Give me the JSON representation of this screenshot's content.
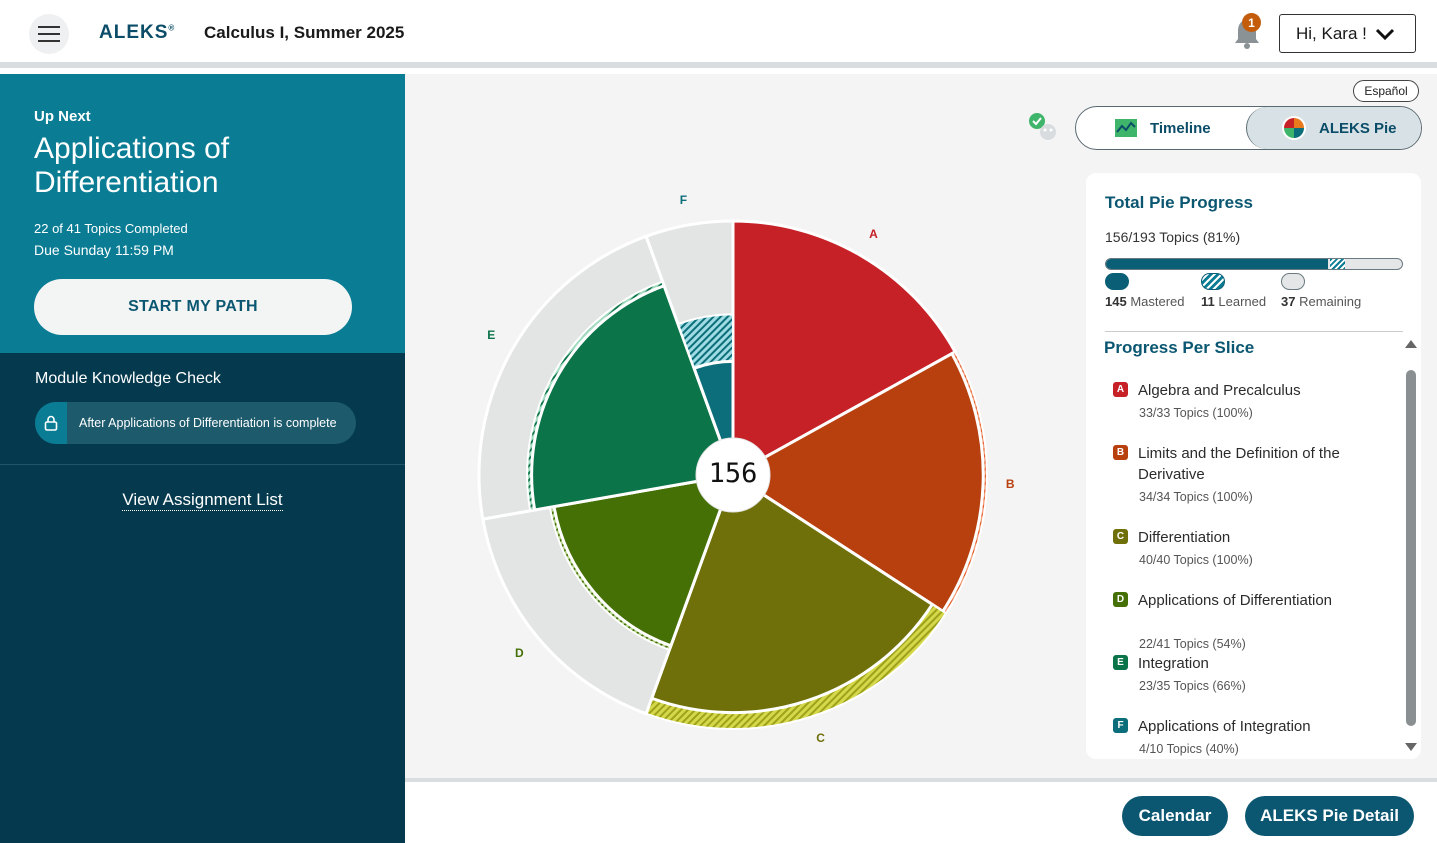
{
  "header": {
    "logo": "ALEKS",
    "logo_mark": "®",
    "course": "Calculus I, Summer 2025",
    "notifications": "1",
    "user": "Hi, Kara !"
  },
  "sidebar": {
    "up_next_label": "Up Next",
    "up_next_title": "Applications of Differentiation",
    "topics_completed": "22 of 41 Topics Completed",
    "due": "Due Sunday 11:59 PM",
    "start_label": "START MY PATH",
    "knowledge_check_title": "Module Knowledge Check",
    "knowledge_check_note": "After Applications of Differentiation is complete",
    "view_assignments": "View Assignment List"
  },
  "main": {
    "language": "Español",
    "tabs": {
      "timeline": "Timeline",
      "pie": "ALEKS Pie",
      "active": "pie"
    },
    "pie_center": "156"
  },
  "chart_data": {
    "type": "pie",
    "center_total": 156,
    "slices": [
      {
        "letter": "A",
        "mastered": 33,
        "learned": 0,
        "total": 33,
        "color": "#c62127"
      },
      {
        "letter": "B",
        "mastered": 33,
        "learned": 1,
        "total": 34,
        "color": "#b83f0e"
      },
      {
        "letter": "C",
        "mastered": 35,
        "learned": 5,
        "total": 40,
        "color": "#6f700a"
      },
      {
        "letter": "D",
        "mastered": 21,
        "learned": 1,
        "total": 41,
        "color": "#457006"
      },
      {
        "letter": "E",
        "mastered": 22,
        "learned": 1,
        "total": 35,
        "color": "#0c7449"
      },
      {
        "letter": "F",
        "mastered": 2,
        "learned": 2,
        "total": 10,
        "color": "#0b6e7a"
      }
    ]
  },
  "panel": {
    "total_title": "Total Pie Progress",
    "total_sub": "156/193 Topics (81%)",
    "mastered": 145,
    "learned": 11,
    "remaining": 37,
    "total": 193,
    "mastered_count": "145",
    "mastered_label": "Mastered",
    "learned_count": "11",
    "learned_label": "Learned",
    "remaining_count": "37",
    "remaining_label": "Remaining",
    "per_slice_title": "Progress Per Slice",
    "slices": [
      {
        "letter": "A",
        "name": "Algebra and Precalculus",
        "topics": "33/33 Topics (100%)"
      },
      {
        "letter": "B",
        "name": "Limits and the Definition of the Derivative",
        "topics": "34/34 Topics (100%)"
      },
      {
        "letter": "C",
        "name": "Differentiation",
        "topics": "40/40 Topics (100%)"
      },
      {
        "letter": "D",
        "name": "Applications of Differentiation",
        "topics": "22/41 Topics (54%)"
      },
      {
        "letter": "E",
        "name": "Integration",
        "topics": "23/35 Topics (66%)"
      },
      {
        "letter": "F",
        "name": "Applications of Integration",
        "topics": "4/10 Topics (40%)"
      }
    ]
  },
  "footer": {
    "calendar": "Calendar",
    "pie_detail": "ALEKS Pie Detail"
  }
}
